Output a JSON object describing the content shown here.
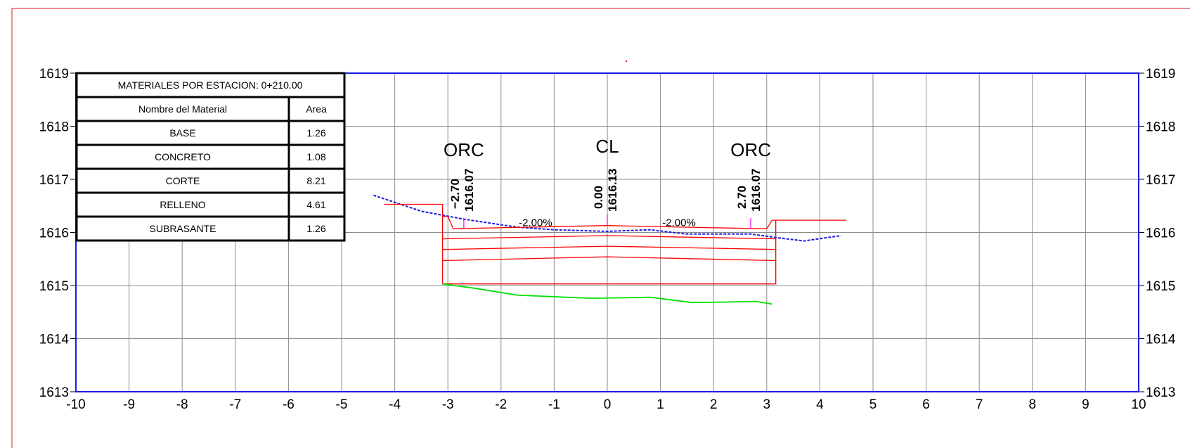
{
  "chart_data": {
    "type": "line",
    "x_ticks": [
      "-10",
      "-9",
      "-8",
      "-7",
      "-6",
      "-5",
      "-4",
      "-3",
      "-2",
      "-1",
      "0",
      "1",
      "2",
      "3",
      "4",
      "5",
      "6",
      "7",
      "8",
      "9",
      "10"
    ],
    "y_ticks": [
      "1613",
      "1614",
      "1615",
      "1616",
      "1617",
      "1618",
      "1619"
    ],
    "xlim": [
      -10,
      10
    ],
    "ylim": [
      1613,
      1619
    ],
    "grid": true,
    "materials_table": {
      "title": "MATERIALES POR ESTACION: 0+210.00",
      "header_material": "Nombre del Material",
      "header_area": "Area",
      "rows": [
        {
          "material": "BASE",
          "area": "1.26"
        },
        {
          "material": "CONCRETO",
          "area": "1.08"
        },
        {
          "material": "CORTE",
          "area": "8.21"
        },
        {
          "material": "RELLENO",
          "area": "4.61"
        },
        {
          "material": "SUBRASANTE",
          "area": "1.26"
        }
      ]
    },
    "point_labels": [
      {
        "name": "ORC",
        "offset": "−2.70",
        "elevation": "1616.07",
        "x": -2.7,
        "y": 1616.07
      },
      {
        "name": "CL",
        "offset": "0.00",
        "elevation": "1616.13",
        "x": 0.0,
        "y": 1616.13
      },
      {
        "name": "ORC",
        "offset": "2.70",
        "elevation": "1616.07",
        "x": 2.7,
        "y": 1616.07
      }
    ],
    "slope_labels": [
      {
        "text": "-2.00%",
        "x": -1.35,
        "y": 1616.2
      },
      {
        "text": "-2.00%",
        "x": 1.35,
        "y": 1616.2
      }
    ],
    "series": [
      {
        "color": "#1a1ae6",
        "style": "dashed",
        "x": [
          -4.4,
          -3.5,
          -2.7,
          -1.7,
          -1.0,
          0.0,
          0.8,
          1.5,
          2.7,
          3.2,
          3.7,
          4.4
        ],
        "y": [
          1616.7,
          1616.4,
          1616.25,
          1616.1,
          1616.05,
          1616.02,
          1616.05,
          1615.97,
          1615.97,
          1615.9,
          1615.84,
          1615.94
        ]
      },
      {
        "color": "#ff0000",
        "style": "solid",
        "x": [
          -4.2,
          -3.1,
          -3.1,
          -3.0,
          -2.9,
          0.0,
          2.9,
          3.0,
          3.1,
          3.1,
          4.5
        ],
        "y": [
          1616.53,
          1616.53,
          1616.3,
          1616.3,
          1616.07,
          1616.13,
          1616.07,
          1616.07,
          1616.23,
          1616.23,
          1616.23
        ]
      },
      {
        "color": "#ff0000",
        "style": "solid",
        "x": [
          -3.1,
          -3.1,
          3.17,
          3.17
        ],
        "y": [
          1616.3,
          1615.03,
          1615.03,
          1616.23
        ]
      },
      {
        "color": "#ff0000",
        "style": "solid",
        "x": [
          -3.1,
          0.0,
          3.17
        ],
        "y": [
          1615.88,
          1615.94,
          1615.88
        ]
      },
      {
        "color": "#ff0000",
        "style": "solid",
        "x": [
          -3.1,
          0.0,
          3.17
        ],
        "y": [
          1615.68,
          1615.74,
          1615.68
        ]
      },
      {
        "color": "#ff0000",
        "style": "solid",
        "x": [
          -3.1,
          0.0,
          3.17
        ],
        "y": [
          1615.47,
          1615.54,
          1615.47
        ]
      },
      {
        "color": "#00e000",
        "style": "solid",
        "x": [
          -3.1,
          -2.5,
          -1.7,
          -1.0,
          -0.3,
          0.3,
          0.8,
          1.6,
          2.3,
          2.8,
          3.1
        ],
        "y": [
          1615.03,
          1614.95,
          1614.82,
          1614.79,
          1614.76,
          1614.77,
          1614.78,
          1614.68,
          1614.69,
          1614.7,
          1614.65
        ]
      },
      {
        "color": "#ff00ff",
        "style": "solid",
        "x": [
          -2.7,
          -2.7
        ],
        "y": [
          1616.27,
          1616.07
        ]
      },
      {
        "color": "#ff00ff",
        "style": "solid",
        "x": [
          0.0,
          0.0
        ],
        "y": [
          1616.33,
          1616.13
        ]
      },
      {
        "color": "#ff00ff",
        "style": "solid",
        "x": [
          2.7,
          2.7
        ],
        "y": [
          1616.27,
          1616.07
        ]
      }
    ]
  }
}
